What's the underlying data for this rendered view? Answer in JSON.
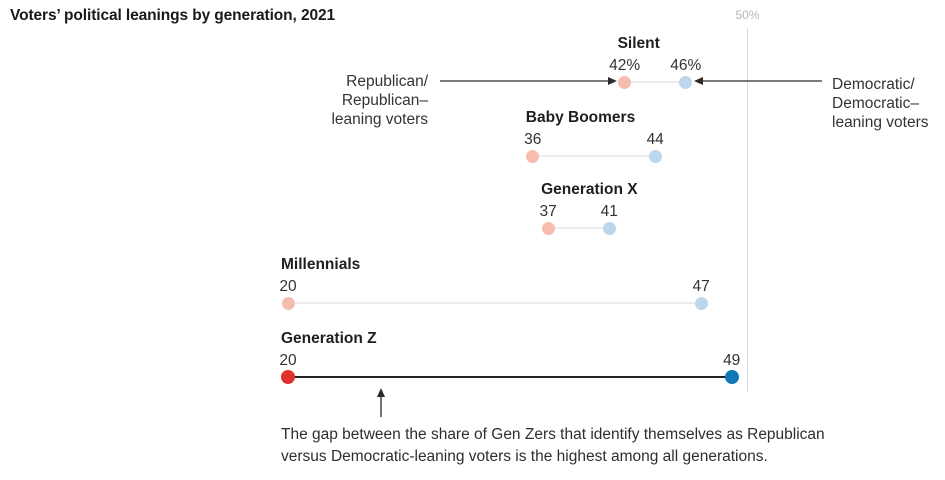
{
  "chart_data": {
    "type": "dumbbell",
    "title": "Voters’ political leanings by generation, 2021",
    "x_axis": {
      "reference_value": 50,
      "reference_label": "50%",
      "unit": "percent",
      "min_shown": 20
    },
    "legend": {
      "republican_lines": [
        "Republican/",
        "Republican–",
        "leaning voters"
      ],
      "democratic_lines": [
        "Democratic/",
        "Democratic–",
        "leaning voters"
      ]
    },
    "groups": [
      {
        "generation": "Silent",
        "republican": 42,
        "democratic": 46,
        "republican_label": "42%",
        "democratic_label": "46%",
        "emphasized": false
      },
      {
        "generation": "Baby Boomers",
        "republican": 36,
        "democratic": 44,
        "republican_label": "36",
        "democratic_label": "44",
        "emphasized": false
      },
      {
        "generation": "Generation X",
        "republican": 37,
        "democratic": 41,
        "republican_label": "37",
        "democratic_label": "41",
        "emphasized": false
      },
      {
        "generation": "Millennials",
        "republican": 20,
        "democratic": 47,
        "republican_label": "20",
        "democratic_label": "47",
        "emphasized": false
      },
      {
        "generation": "Generation Z",
        "republican": 20,
        "democratic": 49,
        "republican_label": "20",
        "democratic_label": "49",
        "emphasized": true
      }
    ],
    "annotation_lines": [
      "The gap between the share of Gen Zers that identify themselves as Republican",
      "versus Democratic-leaning voters is the highest among all generations."
    ],
    "colors": {
      "republican_light": "#f5bdb0",
      "democratic_light": "#bcd7ed",
      "republican_strong": "#e0312a",
      "democratic_strong": "#1277b6",
      "connector_light": "#ebebeb",
      "connector_dark": "#222222",
      "axis_line": "#d9d9d9",
      "axis_label": "#b5b5b5",
      "arrow": "#2b2b2b"
    }
  }
}
